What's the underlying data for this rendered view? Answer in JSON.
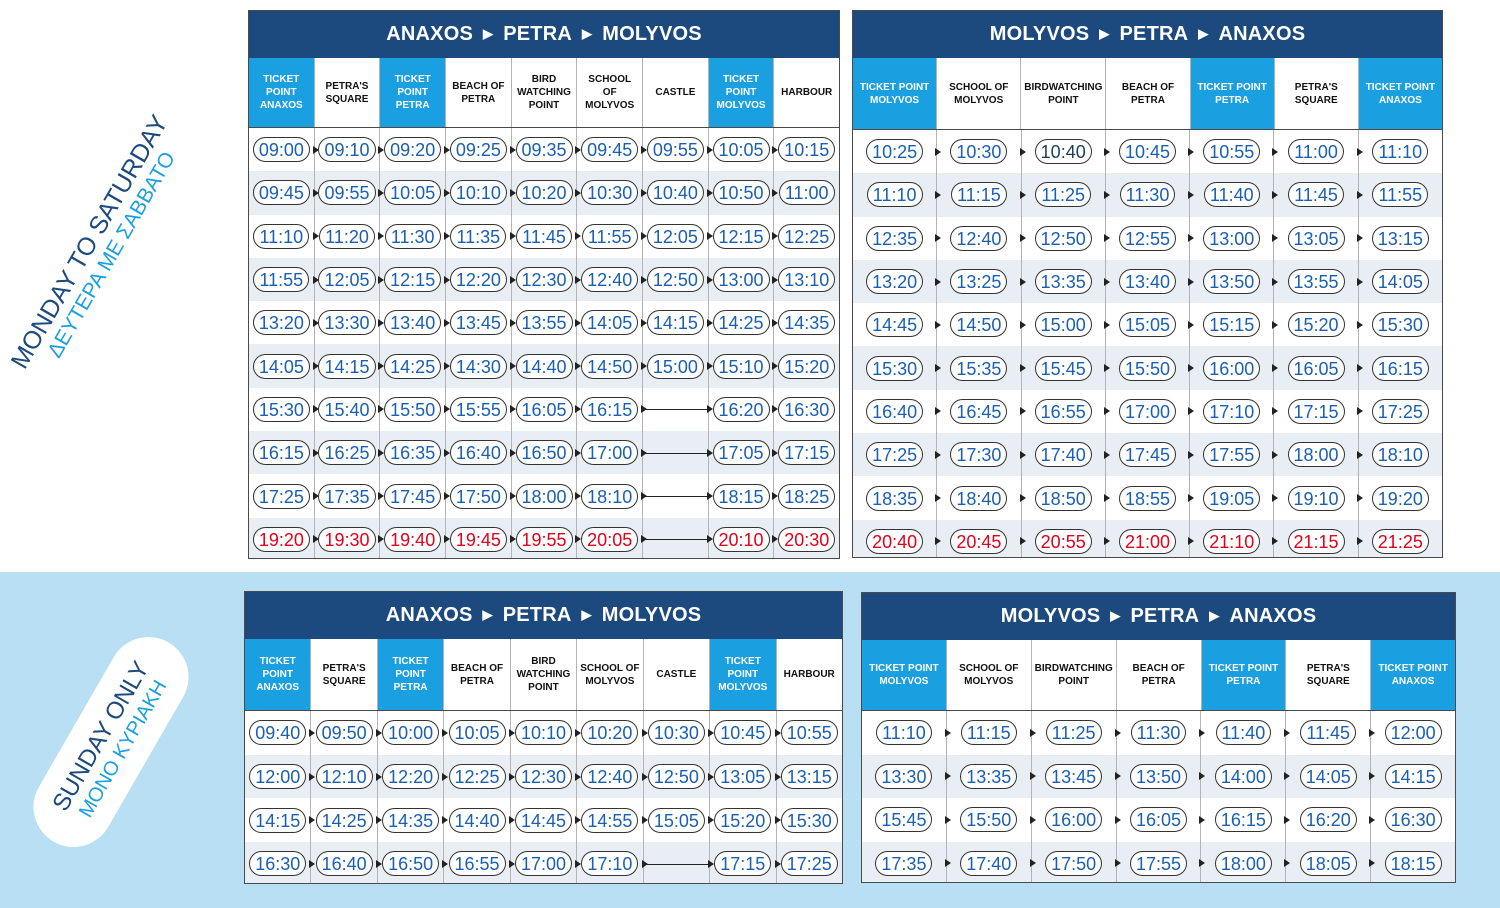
{
  "labels": {
    "weekday": {
      "en": "MONDAY TO SATURDAY",
      "gr": "ΔΕΥΤΕΡΑ ΜΕ ΣΑΒΒΑΤΟ"
    },
    "sunday": {
      "en": "SUNDAY ONLY",
      "gr": "ΜΟΝΟ ΚΥΡΙΑΚΗ"
    }
  },
  "colors": {
    "title_bg": "#1c4a7e",
    "ticket_point_bg": "#1aa0e0",
    "time_blue": "#1a5fb4",
    "time_red": "#e3001b",
    "sunday_band": "#b9dff4"
  },
  "icons": {
    "arrow": "right-triangle-icon"
  },
  "tables": [
    {
      "title": [
        "ANAXOS",
        "PETRA",
        "MOLYVOS"
      ],
      "columns": [
        {
          "label": "TICKET POINT|ANAXOS",
          "ticket_point": true
        },
        {
          "label": "PETRA'S|SQUARE",
          "ticket_point": false
        },
        {
          "label": "TICKET POINT|PETRA",
          "ticket_point": true
        },
        {
          "label": "BEACH OF|PETRA",
          "ticket_point": false
        },
        {
          "label": "BIRD|WATCHING|POINT",
          "ticket_point": false
        },
        {
          "label": "SCHOOL OF|MOLYVOS",
          "ticket_point": false
        },
        {
          "label": "CASTLE",
          "ticket_point": false
        },
        {
          "label": "TICKET POINT|MOLYVOS",
          "ticket_point": true
        },
        {
          "label": "HARBOUR",
          "ticket_point": false
        }
      ],
      "rows": [
        {
          "times": [
            "09:00",
            "09:10",
            "09:20",
            "09:25",
            "09:35",
            "09:45",
            "09:55",
            "10:05",
            "10:15"
          ]
        },
        {
          "times": [
            "09:45",
            "09:55",
            "10:05",
            "10:10",
            "10:20",
            "10:30",
            "10:40",
            "10:50",
            "11:00"
          ]
        },
        {
          "times": [
            "11:10",
            "11:20",
            "11:30",
            "11:35",
            "11:45",
            "11:55",
            "12:05",
            "12:15",
            "12:25"
          ]
        },
        {
          "times": [
            "11:55",
            "12:05",
            "12:15",
            "12:20",
            "12:30",
            "12:40",
            "12:50",
            "13:00",
            "13:10"
          ]
        },
        {
          "times": [
            "13:20",
            "13:30",
            "13:40",
            "13:45",
            "13:55",
            "14:05",
            "14:15",
            "14:25",
            "14:35"
          ]
        },
        {
          "times": [
            "14:05",
            "14:15",
            "14:25",
            "14:30",
            "14:40",
            "14:50",
            "15:00",
            "15:10",
            "15:20"
          ]
        },
        {
          "times": [
            "15:30",
            "15:40",
            "15:50",
            "15:55",
            "16:05",
            "16:15",
            "",
            "16:20",
            "16:30"
          ]
        },
        {
          "times": [
            "16:15",
            "16:25",
            "16:35",
            "16:40",
            "16:50",
            "17:00",
            "",
            "17:05",
            "17:15"
          ]
        },
        {
          "times": [
            "17:25",
            "17:35",
            "17:45",
            "17:50",
            "18:00",
            "18:10",
            "",
            "18:15",
            "18:25"
          ]
        },
        {
          "times": [
            "19:20",
            "19:30",
            "19:40",
            "19:45",
            "19:55",
            "20:05",
            "",
            "20:10",
            "20:30"
          ],
          "red": true
        }
      ]
    },
    {
      "title": [
        "MOLYVOS",
        "PETRA",
        "ANAXOS"
      ],
      "columns": [
        {
          "label": "TICKET POINT|MOLYVOS",
          "ticket_point": true
        },
        {
          "label": "SCHOOL OF|MOLYVOS",
          "ticket_point": false
        },
        {
          "label": "BIRDWATCHING|POINT",
          "ticket_point": false
        },
        {
          "label": "BEACH OF|PETRA",
          "ticket_point": false
        },
        {
          "label": "TICKET POINT|PETRA",
          "ticket_point": true
        },
        {
          "label": "PETRA'S|SQUARE",
          "ticket_point": false
        },
        {
          "label": "TICKET POINT|ANAXOS",
          "ticket_point": true
        }
      ],
      "rows": [
        {
          "times": [
            "10:25",
            "10:30",
            "10:40",
            "10:45",
            "10:55",
            "11:00",
            "11:10"
          ]
        },
        {
          "times": [
            "11:10",
            "11:15",
            "11:25",
            "11:30",
            "11:40",
            "11:45",
            "11:55"
          ]
        },
        {
          "times": [
            "12:35",
            "12:40",
            "12:50",
            "12:55",
            "13:00",
            "13:05",
            "13:15"
          ]
        },
        {
          "times": [
            "13:20",
            "13:25",
            "13:35",
            "13:40",
            "13:50",
            "13:55",
            "14:05"
          ]
        },
        {
          "times": [
            "14:45",
            "14:50",
            "15:00",
            "15:05",
            "15:15",
            "15:20",
            "15:30"
          ]
        },
        {
          "times": [
            "15:30",
            "15:35",
            "15:45",
            "15:50",
            "16:00",
            "16:05",
            "16:15"
          ]
        },
        {
          "times": [
            "16:40",
            "16:45",
            "16:55",
            "17:00",
            "17:10",
            "17:15",
            "17:25"
          ]
        },
        {
          "times": [
            "17:25",
            "17:30",
            "17:40",
            "17:45",
            "17:55",
            "18:00",
            "18:10"
          ]
        },
        {
          "times": [
            "18:35",
            "18:40",
            "18:50",
            "18:55",
            "19:05",
            "19:10",
            "19:20"
          ]
        },
        {
          "times": [
            "20:40",
            "20:45",
            "20:55",
            "21:00",
            "21:10",
            "21:15",
            "21:25"
          ],
          "red": true
        }
      ]
    },
    {
      "title": [
        "ANAXOS",
        "PETRA",
        "MOLYVOS"
      ],
      "columns": [
        {
          "label": "TICKET POINT|ANAXOS",
          "ticket_point": true
        },
        {
          "label": "PETRA'S|SQUARE",
          "ticket_point": false
        },
        {
          "label": "TICKET POINT|PETRA",
          "ticket_point": true
        },
        {
          "label": "BEACH OF|PETRA",
          "ticket_point": false
        },
        {
          "label": "BIRD|WATCHING|POINT",
          "ticket_point": false
        },
        {
          "label": "SCHOOL OF|MOLYVOS",
          "ticket_point": false
        },
        {
          "label": "CASTLE",
          "ticket_point": false
        },
        {
          "label": "TICKET POINT|MOLYVOS",
          "ticket_point": true
        },
        {
          "label": "HARBOUR",
          "ticket_point": false
        }
      ],
      "rows": [
        {
          "times": [
            "09:40",
            "09:50",
            "10:00",
            "10:05",
            "10:10",
            "10:20",
            "10:30",
            "10:45",
            "10:55"
          ]
        },
        {
          "times": [
            "12:00",
            "12:10",
            "12:20",
            "12:25",
            "12:30",
            "12:40",
            "12:50",
            "13:05",
            "13:15"
          ]
        },
        {
          "times": [
            "14:15",
            "14:25",
            "14:35",
            "14:40",
            "14:45",
            "14:55",
            "15:05",
            "15:20",
            "15:30"
          ]
        },
        {
          "times": [
            "16:30",
            "16:40",
            "16:50",
            "16:55",
            "17:00",
            "17:10",
            "",
            "17:15",
            "17:25"
          ]
        }
      ]
    },
    {
      "title": [
        "MOLYVOS",
        "PETRA",
        "ANAXOS"
      ],
      "columns": [
        {
          "label": "TICKET POINT|MOLYVOS",
          "ticket_point": true
        },
        {
          "label": "SCHOOL OF|MOLYVOS",
          "ticket_point": false
        },
        {
          "label": "BIRDWATCHING|POINT",
          "ticket_point": false
        },
        {
          "label": "BEACH OF|PETRA",
          "ticket_point": false
        },
        {
          "label": "TICKET POINT|PETRA",
          "ticket_point": true
        },
        {
          "label": "PETRA'S|SQUARE",
          "ticket_point": false
        },
        {
          "label": "TICKET POINT|ANAXOS",
          "ticket_point": true
        }
      ],
      "rows": [
        {
          "times": [
            "11:10",
            "11:15",
            "11:25",
            "11:30",
            "11:40",
            "11:45",
            "12:00"
          ]
        },
        {
          "times": [
            "13:30",
            "13:35",
            "13:45",
            "13:50",
            "14:00",
            "14:05",
            "14:15"
          ]
        },
        {
          "times": [
            "15:45",
            "15:50",
            "16:00",
            "16:05",
            "16:15",
            "16:20",
            "16:30"
          ]
        },
        {
          "times": [
            "17:35",
            "17:40",
            "17:50",
            "17:55",
            "18:00",
            "18:05",
            "18:15"
          ]
        }
      ]
    }
  ]
}
